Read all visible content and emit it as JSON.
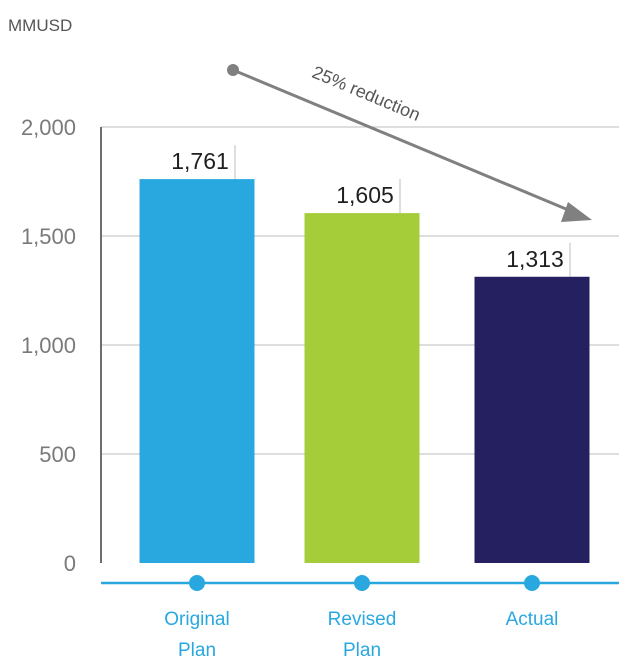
{
  "unit_label": "MMUSD",
  "chart_data": {
    "type": "bar",
    "categories": [
      [
        "Original",
        "Plan"
      ],
      [
        "Revised",
        "Plan"
      ],
      [
        "Actual"
      ]
    ],
    "values": [
      1761,
      1605,
      1313
    ],
    "value_labels": [
      "1,761",
      "1,605",
      "1,313"
    ],
    "bar_colors": [
      "#29a8e0",
      "#a4cd39",
      "#252160"
    ],
    "yticks": [
      0,
      500,
      1000,
      1500,
      2000
    ],
    "ytick_labels": [
      "0",
      "500",
      "1,000",
      "1,500",
      "2,000"
    ],
    "ylim": [
      0,
      2000
    ],
    "grid": true,
    "axis_color": "#29a8e0",
    "annotation": {
      "text": "25% reduction",
      "color": "#808080"
    }
  }
}
